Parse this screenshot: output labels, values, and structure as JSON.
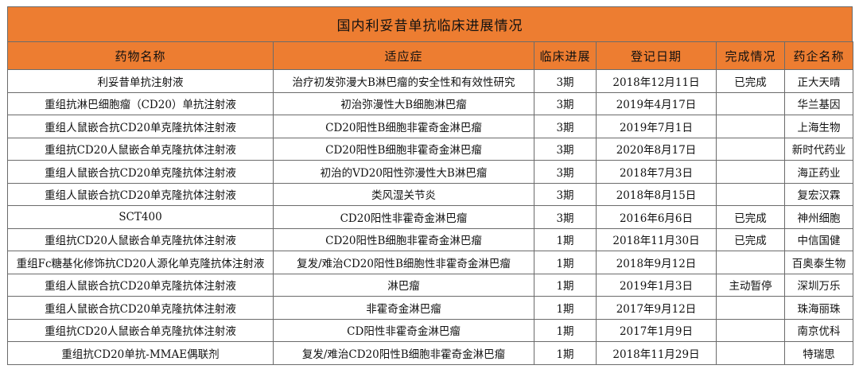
{
  "title": "国内利妥昔单抗临床进展情况",
  "headers": [
    "药物名称",
    "适应症",
    "临床进展",
    "登记日期",
    "完成情况",
    "药企名称"
  ],
  "rows": [
    [
      "利妥昔单抗注射液",
      "治疗初发弥漫大B淋巴瘤的安全性和有效性研究",
      "3期",
      "2018年12月11日",
      "已完成",
      "正大天晴"
    ],
    [
      "重组抗淋巴细胞瘤（CD20）单抗注射液",
      "初治弥漫性大B细胞淋巴瘤",
      "3期",
      "2019年4月17日",
      "",
      "华兰基因"
    ],
    [
      "重组人鼠嵌合抗CD20单克隆抗体注射液",
      "CD20阳性B细胞非霍奇金淋巴瘤",
      "3期",
      "2019年7月1日",
      "",
      "上海生物"
    ],
    [
      "重组抗CD20人鼠嵌合单克隆抗体注射液",
      "CD20阳性B细胞非霍奇金淋巴瘤",
      "3期",
      "2020年8月17日",
      "",
      "新时代药业"
    ],
    [
      "重组人鼠嵌合抗CD20单克隆抗体注射液",
      "初治的VD20阳性弥漫性大B淋巴瘤",
      "3期",
      "2018年7月3日",
      "",
      "海正药业"
    ],
    [
      "重组人鼠嵌合抗CD20单克隆抗体注射液",
      "类风湿关节炎",
      "3期",
      "2018年8月15日",
      "",
      "复宏汉霖"
    ],
    [
      "SCT400",
      "CD20阳性非霍奇金淋巴瘤",
      "3期",
      "2016年6月6日",
      "已完成",
      "神州细胞"
    ],
    [
      "重组抗CD20人鼠嵌合单克隆抗体注射液",
      "CD20阳性B细胞非霍奇金淋巴瘤",
      "1期",
      "2018年11月30日",
      "已完成",
      "中信国健"
    ],
    [
      "重组Fc糖基化修饰抗CD20人源化单克隆抗体注射液",
      "复发/难治CD20阳性B细胞性非霍奇金淋巴瘤",
      "1期",
      "2018年9月12日",
      "",
      "百奥泰生物"
    ],
    [
      "重组人鼠嵌合抗CD20单克隆抗体注射液",
      "淋巴瘤",
      "1期",
      "2019年1月3日",
      "主动暂停",
      "深圳万乐"
    ],
    [
      "重组人鼠嵌合抗CD20单克隆抗体注射液",
      "非霍奇金淋巴瘤",
      "1期",
      "2017年9月12日",
      "",
      "珠海丽珠"
    ],
    [
      "重组抗CD20人鼠嵌合单克隆抗体注射液",
      "CD阳性非霍奇金淋巴瘤",
      "1期",
      "2017年1月9日",
      "",
      "南京优科"
    ],
    [
      "重组抗CD20单抗-MMAE偶联剂",
      "复发/难治CD20阳性B细胞非霍奇金淋巴瘤",
      "1期",
      "2018年11月29日",
      "",
      "特瑞思"
    ]
  ]
}
